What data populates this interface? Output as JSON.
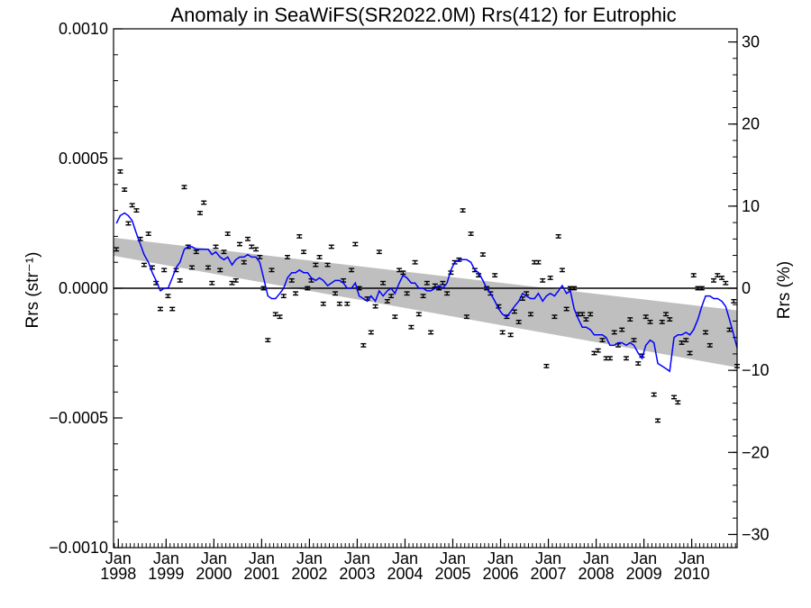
{
  "chart_data": {
    "type": "scatter",
    "title": "Anomaly in SeaWiFS(SR2022.0M) Rrs(412) for Eutrophic",
    "ylabel_left": "Rrs (str⁻¹)",
    "ylabel_right": "Rrs (%)",
    "ylim_left": [
      -0.001,
      0.001
    ],
    "ylim_right": [
      -31.6,
      31.6
    ],
    "xlim": [
      1997.9,
      2010.95
    ],
    "x_ticks": [
      {
        "x": 1998.0,
        "month": "Jan",
        "year": "1998"
      },
      {
        "x": 1999.0,
        "month": "Jan",
        "year": "1999"
      },
      {
        "x": 2000.0,
        "month": "Jan",
        "year": "2000"
      },
      {
        "x": 2001.0,
        "month": "Jan",
        "year": "2001"
      },
      {
        "x": 2002.0,
        "month": "Jan",
        "year": "2002"
      },
      {
        "x": 2003.0,
        "month": "Jan",
        "year": "2003"
      },
      {
        "x": 2004.0,
        "month": "Jan",
        "year": "2004"
      },
      {
        "x": 2005.0,
        "month": "Jan",
        "year": "2005"
      },
      {
        "x": 2006.0,
        "month": "Jan",
        "year": "2006"
      },
      {
        "x": 2007.0,
        "month": "Jan",
        "year": "2007"
      },
      {
        "x": 2008.0,
        "month": "Jan",
        "year": "2008"
      },
      {
        "x": 2009.0,
        "month": "Jan",
        "year": "2009"
      },
      {
        "x": 2010.0,
        "month": "Jan",
        "year": "2010"
      }
    ],
    "y_ticks_left": [
      {
        "v": 0.001,
        "label": "0.0010"
      },
      {
        "v": 0.0005,
        "label": "0.0005"
      },
      {
        "v": 0.0,
        "label": "0.0000"
      },
      {
        "v": -0.0005,
        "label": "−0.0005"
      },
      {
        "v": -0.001,
        "label": "−0.0010"
      }
    ],
    "y_ticks_right": [
      {
        "v": 30,
        "label": "30"
      },
      {
        "v": 20,
        "label": "20"
      },
      {
        "v": 10,
        "label": "10"
      },
      {
        "v": 0,
        "label": "0"
      },
      {
        "v": -10,
        "label": "−10"
      },
      {
        "v": -20,
        "label": "−20"
      },
      {
        "v": -30,
        "label": "−30"
      }
    ],
    "error_half_width": 6e-06,
    "points": [
      [
        1997.96,
        0.00015
      ],
      [
        1998.04,
        0.00045
      ],
      [
        1998.13,
        0.00038
      ],
      [
        1998.21,
        0.00025
      ],
      [
        1998.29,
        0.00032
      ],
      [
        1998.38,
        0.0003
      ],
      [
        1998.46,
        0.00019
      ],
      [
        1998.54,
        9e-05
      ],
      [
        1998.63,
        0.00021
      ],
      [
        1998.71,
        8e-05
      ],
      [
        1998.79,
        2e-05
      ],
      [
        1998.88,
        -8e-05
      ],
      [
        1998.96,
        7e-05
      ],
      [
        1999.04,
        -3e-05
      ],
      [
        1999.13,
        -8e-05
      ],
      [
        1999.21,
        7e-05
      ],
      [
        1999.29,
        3e-05
      ],
      [
        1999.38,
        0.00039
      ],
      [
        1999.46,
        0.00016
      ],
      [
        1999.54,
        8e-05
      ],
      [
        1999.63,
        0.00014
      ],
      [
        1999.71,
        0.00029
      ],
      [
        1999.79,
        0.00033
      ],
      [
        1999.88,
        8e-05
      ],
      [
        1999.96,
        2e-05
      ],
      [
        2000.04,
        0.00016
      ],
      [
        2000.13,
        7e-05
      ],
      [
        2000.21,
        0.00014
      ],
      [
        2000.29,
        0.00021
      ],
      [
        2000.38,
        2e-05
      ],
      [
        2000.46,
        3e-05
      ],
      [
        2000.54,
        0.00017
      ],
      [
        2000.63,
        0.0001
      ],
      [
        2000.71,
        0.00019
      ],
      [
        2000.79,
        0.00016
      ],
      [
        2000.88,
        0.00015
      ],
      [
        2000.96,
        0.00012
      ],
      [
        2001.04,
        0.0
      ],
      [
        2001.13,
        -0.0002
      ],
      [
        2001.21,
        7e-05
      ],
      [
        2001.29,
        -0.0001
      ],
      [
        2001.38,
        -0.00011
      ],
      [
        2001.46,
        -3e-05
      ],
      [
        2001.54,
        0.00012
      ],
      [
        2001.63,
        3e-05
      ],
      [
        2001.71,
        -2e-05
      ],
      [
        2001.79,
        0.0002
      ],
      [
        2001.88,
        0.00014
      ],
      [
        2001.96,
        0.0
      ],
      [
        2002.04,
        3e-05
      ],
      [
        2002.13,
        9e-05
      ],
      [
        2002.21,
        0.00012
      ],
      [
        2002.29,
        -6e-05
      ],
      [
        2002.38,
        9e-05
      ],
      [
        2002.46,
        0.00016
      ],
      [
        2002.54,
        -2e-05
      ],
      [
        2002.63,
        -6e-05
      ],
      [
        2002.71,
        3e-05
      ],
      [
        2002.79,
        -6e-05
      ],
      [
        2002.88,
        7e-05
      ],
      [
        2002.96,
        0.00017
      ],
      [
        2003.04,
        0.0
      ],
      [
        2003.13,
        -0.00022
      ],
      [
        2003.21,
        -4e-05
      ],
      [
        2003.29,
        -0.00017
      ],
      [
        2003.38,
        -7e-05
      ],
      [
        2003.46,
        0.00014
      ],
      [
        2003.54,
        2e-05
      ],
      [
        2003.63,
        -5e-05
      ],
      [
        2003.71,
        -3e-05
      ],
      [
        2003.79,
        -0.00011
      ],
      [
        2003.88,
        7e-05
      ],
      [
        2003.96,
        6e-05
      ],
      [
        2004.04,
        -2e-05
      ],
      [
        2004.13,
        -0.00015
      ],
      [
        2004.21,
        0.0001
      ],
      [
        2004.29,
        -0.0001
      ],
      [
        2004.38,
        -3e-05
      ],
      [
        2004.46,
        2e-05
      ],
      [
        2004.54,
        -0.00017
      ],
      [
        2004.63,
        1e-05
      ],
      [
        2004.71,
        0.0
      ],
      [
        2004.79,
        2e-05
      ],
      [
        2004.88,
        -2e-05
      ],
      [
        2004.96,
        6e-05
      ],
      [
        2005.04,
        0.0001
      ],
      [
        2005.13,
        0.00011
      ],
      [
        2005.21,
        0.0003
      ],
      [
        2005.29,
        -0.00011
      ],
      [
        2005.38,
        0.00021
      ],
      [
        2005.46,
        7e-05
      ],
      [
        2005.54,
        5e-05
      ],
      [
        2005.63,
        0.00013
      ],
      [
        2005.71,
        0.0
      ],
      [
        2005.79,
        -2e-05
      ],
      [
        2005.88,
        5e-05
      ],
      [
        2005.96,
        -7e-05
      ],
      [
        2006.04,
        -0.00017
      ],
      [
        2006.13,
        -0.00011
      ],
      [
        2006.21,
        -0.00018
      ],
      [
        2006.29,
        -9e-05
      ],
      [
        2006.38,
        -0.00013
      ],
      [
        2006.46,
        -4e-05
      ],
      [
        2006.54,
        -2e-05
      ],
      [
        2006.63,
        -0.0001
      ],
      [
        2006.71,
        0.0001
      ],
      [
        2006.79,
        0.0001
      ],
      [
        2006.88,
        3e-05
      ],
      [
        2006.96,
        -0.0003
      ],
      [
        2007.04,
        4e-05
      ],
      [
        2007.13,
        -0.00011
      ],
      [
        2007.21,
        0.0002
      ],
      [
        2007.29,
        7e-05
      ],
      [
        2007.38,
        -8e-05
      ],
      [
        2007.46,
        0.0
      ],
      [
        2007.54,
        0.0
      ],
      [
        2007.63,
        -0.0001
      ],
      [
        2007.71,
        -0.0001
      ],
      [
        2007.79,
        -0.00012
      ],
      [
        2007.88,
        -0.0001
      ],
      [
        2007.96,
        -0.00025
      ],
      [
        2008.04,
        -0.00024
      ],
      [
        2008.13,
        -0.0002
      ],
      [
        2008.21,
        -0.00027
      ],
      [
        2008.29,
        -0.00027
      ],
      [
        2008.38,
        -0.00017
      ],
      [
        2008.46,
        -0.00022
      ],
      [
        2008.54,
        -0.00016
      ],
      [
        2008.63,
        -0.00027
      ],
      [
        2008.71,
        -0.00012
      ],
      [
        2008.79,
        -0.0002
      ],
      [
        2008.88,
        -0.00029
      ],
      [
        2008.96,
        -0.00026
      ],
      [
        2009.04,
        -0.00011
      ],
      [
        2009.13,
        -0.00013
      ],
      [
        2009.21,
        -0.00041
      ],
      [
        2009.29,
        -0.00051
      ],
      [
        2009.38,
        -0.00013
      ],
      [
        2009.46,
        -0.0001
      ],
      [
        2009.54,
        -0.00012
      ],
      [
        2009.63,
        -0.00042
      ],
      [
        2009.71,
        -0.00044
      ],
      [
        2009.79,
        -0.00021
      ],
      [
        2009.88,
        -0.0002
      ],
      [
        2009.96,
        -0.00025
      ],
      [
        2010.04,
        5e-05
      ],
      [
        2010.13,
        0.0
      ],
      [
        2010.21,
        0.0
      ],
      [
        2010.29,
        -0.00017
      ],
      [
        2010.38,
        -0.00022
      ],
      [
        2010.46,
        3e-05
      ],
      [
        2010.54,
        5e-05
      ],
      [
        2010.63,
        4e-05
      ],
      [
        2010.71,
        2e-05
      ],
      [
        2010.79,
        -0.00016
      ],
      [
        2010.88,
        -5e-05
      ],
      [
        2010.95,
        -0.0003
      ]
    ],
    "smooth_line": {
      "color": "#0000ff",
      "points": [
        [
          1997.96,
          0.00025
        ],
        [
          1998.04,
          0.00028
        ],
        [
          1998.13,
          0.00029
        ],
        [
          1998.21,
          0.00028
        ],
        [
          1998.29,
          0.00026
        ],
        [
          1998.38,
          0.00021
        ],
        [
          1998.46,
          0.00017
        ],
        [
          1998.54,
          0.00013
        ],
        [
          1998.63,
          0.0001
        ],
        [
          1998.71,
          6e-05
        ],
        [
          1998.79,
          3e-05
        ],
        [
          1998.88,
          -1e-05
        ],
        [
          1998.96,
          0.0
        ],
        [
          1999.04,
          0.0
        ],
        [
          1999.13,
          4e-05
        ],
        [
          1999.21,
          8e-05
        ],
        [
          1999.29,
          0.0001
        ],
        [
          1999.38,
          0.00015
        ],
        [
          1999.46,
          0.00016
        ],
        [
          1999.54,
          0.00016
        ],
        [
          1999.63,
          0.00015
        ],
        [
          1999.71,
          0.00015
        ],
        [
          1999.79,
          0.00015
        ],
        [
          1999.88,
          0.00015
        ],
        [
          1999.96,
          0.00013
        ],
        [
          2000.04,
          0.00014
        ],
        [
          2000.13,
          0.00012
        ],
        [
          2000.21,
          0.00011
        ],
        [
          2000.29,
          0.00012
        ],
        [
          2000.38,
          9e-05
        ],
        [
          2000.46,
          0.00011
        ],
        [
          2000.54,
          0.00012
        ],
        [
          2000.63,
          0.00012
        ],
        [
          2000.71,
          0.00013
        ],
        [
          2000.79,
          0.00012
        ],
        [
          2000.88,
          0.00012
        ],
        [
          2000.96,
          0.0001
        ],
        [
          2001.04,
          4e-05
        ],
        [
          2001.13,
          -3e-05
        ],
        [
          2001.21,
          -4e-05
        ],
        [
          2001.29,
          -4e-05
        ],
        [
          2001.38,
          -2e-05
        ],
        [
          2001.46,
          0.0
        ],
        [
          2001.54,
          4e-05
        ],
        [
          2001.63,
          6e-05
        ],
        [
          2001.71,
          6e-05
        ],
        [
          2001.79,
          7e-05
        ],
        [
          2001.88,
          6e-05
        ],
        [
          2001.96,
          6e-05
        ],
        [
          2002.04,
          4e-05
        ],
        [
          2002.13,
          3e-05
        ],
        [
          2002.21,
          4e-05
        ],
        [
          2002.29,
          3e-05
        ],
        [
          2002.38,
          1e-05
        ],
        [
          2002.46,
          2e-05
        ],
        [
          2002.54,
          3e-05
        ],
        [
          2002.63,
          3e-05
        ],
        [
          2002.71,
          2e-05
        ],
        [
          2002.79,
          0.0
        ],
        [
          2002.88,
          0.0
        ],
        [
          2002.96,
          2e-05
        ],
        [
          2003.04,
          -3e-05
        ],
        [
          2003.13,
          -4e-05
        ],
        [
          2003.21,
          -5e-05
        ],
        [
          2003.29,
          -3e-05
        ],
        [
          2003.38,
          -5e-05
        ],
        [
          2003.46,
          -1e-05
        ],
        [
          2003.54,
          -3e-05
        ],
        [
          2003.63,
          -1e-05
        ],
        [
          2003.71,
          0.0
        ],
        [
          2003.79,
          -2e-05
        ],
        [
          2003.88,
          2e-05
        ],
        [
          2003.96,
          5e-05
        ],
        [
          2004.04,
          4e-05
        ],
        [
          2004.13,
          2e-05
        ],
        [
          2004.21,
          2e-05
        ],
        [
          2004.29,
          0.0
        ],
        [
          2004.38,
          0.0
        ],
        [
          2004.46,
          -1e-05
        ],
        [
          2004.54,
          -1e-05
        ],
        [
          2004.63,
          0.0
        ],
        [
          2004.71,
          1e-05
        ],
        [
          2004.79,
          0.0
        ],
        [
          2004.88,
          2e-05
        ],
        [
          2004.96,
          7e-05
        ],
        [
          2005.04,
          0.0001
        ],
        [
          2005.13,
          0.00011
        ],
        [
          2005.21,
          0.00011
        ],
        [
          2005.29,
          0.00011
        ],
        [
          2005.38,
          0.0001
        ],
        [
          2005.46,
          7e-05
        ],
        [
          2005.54,
          6e-05
        ],
        [
          2005.63,
          3e-05
        ],
        [
          2005.71,
          0.0
        ],
        [
          2005.79,
          -2e-05
        ],
        [
          2005.88,
          -5e-05
        ],
        [
          2005.96,
          -8e-05
        ],
        [
          2006.04,
          -0.0001
        ],
        [
          2006.13,
          -0.00011
        ],
        [
          2006.21,
          -9e-05
        ],
        [
          2006.29,
          -7e-05
        ],
        [
          2006.38,
          -5e-05
        ],
        [
          2006.46,
          -2e-05
        ],
        [
          2006.54,
          -3e-05
        ],
        [
          2006.63,
          -4e-05
        ],
        [
          2006.71,
          -4e-05
        ],
        [
          2006.79,
          -2e-05
        ],
        [
          2006.88,
          -5e-05
        ],
        [
          2006.96,
          -3e-05
        ],
        [
          2007.04,
          -2e-05
        ],
        [
          2007.13,
          -3e-05
        ],
        [
          2007.21,
          -1e-05
        ],
        [
          2007.29,
          1e-05
        ],
        [
          2007.38,
          -2e-05
        ],
        [
          2007.46,
          -1e-05
        ],
        [
          2007.54,
          -8e-05
        ],
        [
          2007.63,
          -0.00012
        ],
        [
          2007.71,
          -0.00015
        ],
        [
          2007.79,
          -0.00015
        ],
        [
          2007.88,
          -0.00016
        ],
        [
          2007.96,
          -0.00018
        ],
        [
          2008.04,
          -0.00018
        ],
        [
          2008.13,
          -0.00018
        ],
        [
          2008.21,
          -0.00019
        ],
        [
          2008.29,
          -0.00022
        ],
        [
          2008.38,
          -0.00022
        ],
        [
          2008.46,
          -0.00021
        ],
        [
          2008.54,
          -0.00021
        ],
        [
          2008.63,
          -0.00022
        ],
        [
          2008.71,
          -0.00021
        ],
        [
          2008.79,
          -0.00022
        ],
        [
          2008.88,
          -0.00025
        ],
        [
          2008.96,
          -0.00027
        ],
        [
          2009.04,
          -0.00022
        ],
        [
          2009.13,
          -0.0002
        ],
        [
          2009.21,
          -0.00021
        ],
        [
          2009.29,
          -0.00029
        ],
        [
          2009.38,
          -0.0003
        ],
        [
          2009.46,
          -0.00031
        ],
        [
          2009.54,
          -0.00032
        ],
        [
          2009.63,
          -0.00019
        ],
        [
          2009.71,
          -0.00018
        ],
        [
          2009.79,
          -0.00018
        ],
        [
          2009.88,
          -0.00017
        ],
        [
          2009.96,
          -0.00018
        ],
        [
          2010.04,
          -0.00016
        ],
        [
          2010.13,
          -0.00012
        ],
        [
          2010.21,
          -7e-05
        ],
        [
          2010.29,
          -3e-05
        ],
        [
          2010.38,
          -3e-05
        ],
        [
          2010.46,
          -4e-05
        ],
        [
          2010.54,
          -4e-05
        ],
        [
          2010.63,
          -5e-05
        ],
        [
          2010.71,
          -7e-05
        ],
        [
          2010.79,
          -0.00012
        ],
        [
          2010.88,
          -0.00018
        ],
        [
          2010.95,
          -0.00023
        ]
      ]
    },
    "trend_band": {
      "color": "#bfbfbf",
      "x": [
        1997.9,
        2010.95
      ],
      "upper": [
        0.000195,
        -8.5e-05
      ],
      "lower": [
        0.000125,
        -0.000305
      ]
    },
    "zero_line": true,
    "grid": false
  }
}
